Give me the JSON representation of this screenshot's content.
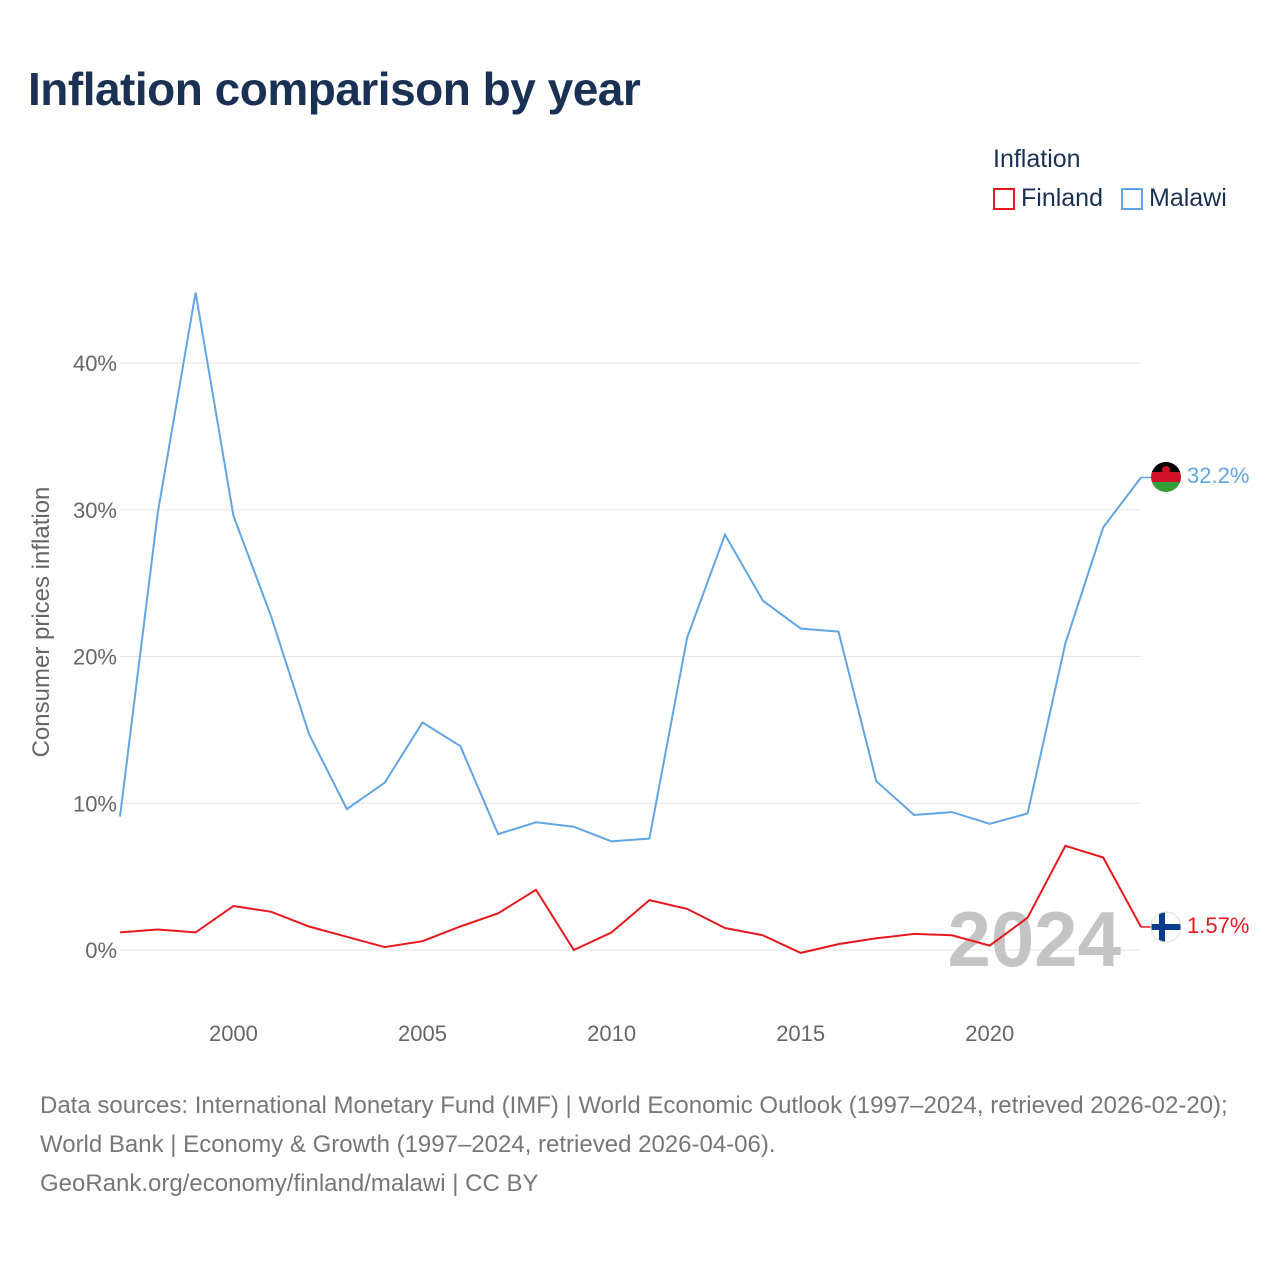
{
  "title": "Inflation comparison by year",
  "legend": {
    "title": "Inflation",
    "items": [
      {
        "label": "Finland",
        "color": "#e8191e"
      },
      {
        "label": "Malawi",
        "color": "#62a5e4"
      }
    ]
  },
  "source": {
    "line1": "Data sources: International Monetary Fund (IMF) | World Economic Outlook (1997–2024, retrieved 2026-02-20); World Bank | Economy & Growth (1997–2024, retrieved 2026-04-06).",
    "line2": "GeoRank.org/economy/finland/malawi | CC BY"
  },
  "chart_data": {
    "type": "line",
    "title": "Inflation comparison by year",
    "xlabel": "",
    "ylabel": "Consumer prices inflation",
    "xlim": [
      1997,
      2024
    ],
    "ylim": [
      -3,
      46
    ],
    "x_ticks": [
      2000,
      2005,
      2010,
      2015,
      2020
    ],
    "y_ticks": [
      0,
      10,
      20,
      30,
      40
    ],
    "y_tick_labels": [
      "0%",
      "10%",
      "20%",
      "30%",
      "40%"
    ],
    "grid": true,
    "legend_position": "top-right",
    "watermark_year": "2024",
    "x": [
      1997,
      1998,
      1999,
      2000,
      2001,
      2002,
      2003,
      2004,
      2005,
      2006,
      2007,
      2008,
      2009,
      2010,
      2011,
      2012,
      2013,
      2014,
      2015,
      2016,
      2017,
      2018,
      2019,
      2020,
      2021,
      2022,
      2023,
      2024
    ],
    "series": [
      {
        "name": "Finland",
        "color": "#e8191e",
        "end_label": "1.57%",
        "values": [
          1.2,
          1.4,
          1.2,
          3.0,
          2.6,
          1.6,
          0.9,
          0.2,
          0.6,
          1.6,
          2.5,
          4.1,
          0.0,
          1.2,
          3.4,
          2.8,
          1.5,
          1.0,
          -0.2,
          0.4,
          0.8,
          1.1,
          1.0,
          0.3,
          2.2,
          7.1,
          6.3,
          1.57
        ]
      },
      {
        "name": "Malawi",
        "color": "#62a5e4",
        "end_label": "32.2%",
        "values": [
          9.1,
          29.8,
          44.8,
          29.6,
          22.7,
          14.7,
          9.6,
          11.4,
          15.5,
          13.9,
          7.9,
          8.7,
          8.4,
          7.4,
          7.6,
          21.3,
          28.3,
          23.8,
          21.9,
          21.7,
          11.5,
          9.2,
          9.4,
          8.6,
          9.3,
          20.9,
          28.8,
          32.2
        ]
      }
    ]
  }
}
